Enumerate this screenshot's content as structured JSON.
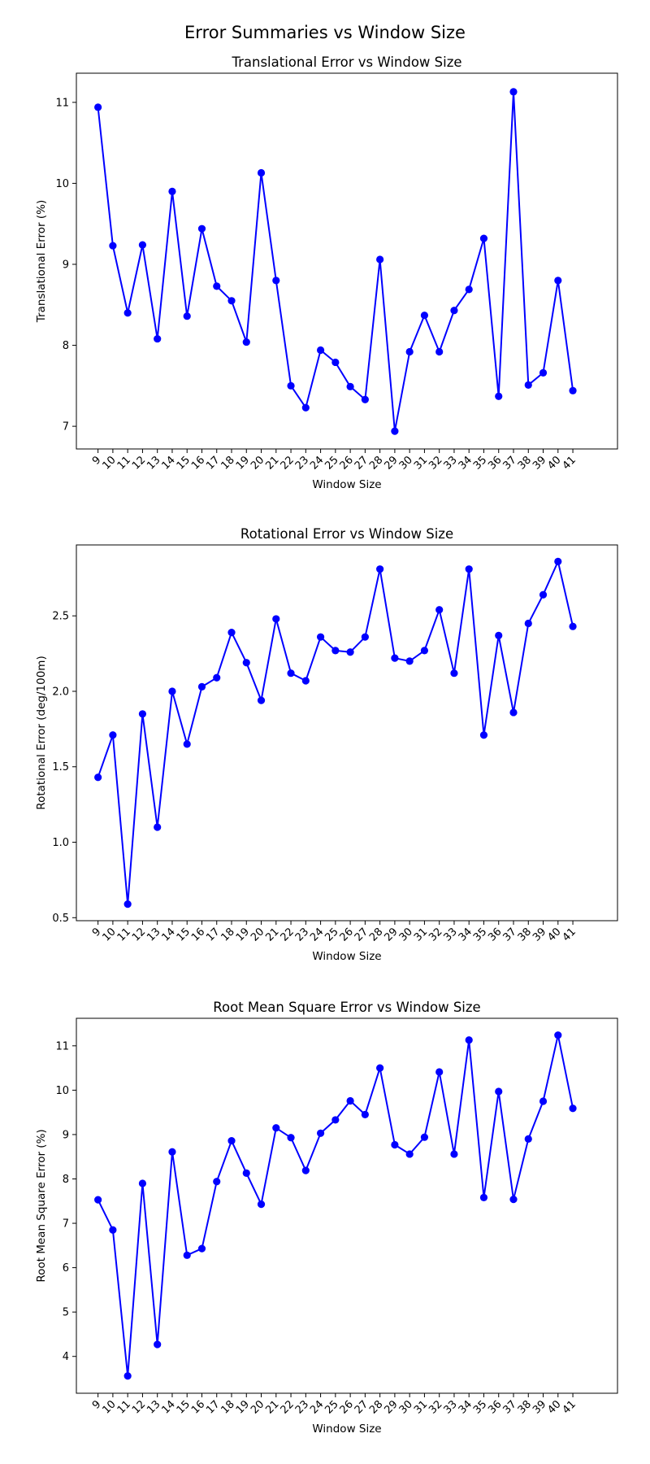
{
  "suptitle": "Error Summaries vs Window Size",
  "chart_data": [
    {
      "type": "line",
      "title": "Translational Error vs Window Size",
      "xlabel": "Window Size",
      "ylabel": "Translational Error (%)",
      "x": [
        9,
        10,
        11,
        12,
        13,
        14,
        15,
        16,
        17,
        18,
        19,
        20,
        21,
        22,
        23,
        24,
        25,
        26,
        27,
        28,
        29,
        30,
        31,
        32,
        33,
        34,
        35,
        36,
        37,
        38,
        39,
        40,
        41
      ],
      "yticks": [
        7,
        8,
        9,
        10,
        11
      ],
      "ylim": [
        6.72,
        11.36
      ],
      "grid": false,
      "series": [
        {
          "values": [
            10.94,
            9.23,
            8.4,
            9.24,
            8.08,
            9.9,
            8.36,
            9.44,
            8.73,
            8.55,
            8.04,
            10.13,
            8.8,
            7.5,
            7.23,
            7.94,
            7.79,
            7.49,
            7.33,
            9.06,
            6.94,
            7.92,
            8.37,
            7.92,
            8.43,
            8.69,
            9.32,
            7.37,
            11.13,
            7.51,
            7.66,
            8.8,
            7.44
          ],
          "color": "#0000ff"
        }
      ]
    },
    {
      "type": "line",
      "title": "Rotational Error vs Window Size",
      "xlabel": "Window Size",
      "ylabel": "Rotational Error (deg/100m)",
      "x": [
        9,
        10,
        11,
        12,
        13,
        14,
        15,
        16,
        17,
        18,
        19,
        20,
        21,
        22,
        23,
        24,
        25,
        26,
        27,
        28,
        29,
        30,
        31,
        32,
        33,
        34,
        35,
        36,
        37,
        38,
        39,
        40,
        41
      ],
      "yticks": [
        0.5,
        1.0,
        1.5,
        2.0,
        2.5
      ],
      "ylim": [
        0.48,
        2.97
      ],
      "grid": false,
      "series": [
        {
          "values": [
            1.43,
            1.71,
            0.59,
            1.85,
            1.1,
            2.0,
            1.65,
            2.03,
            2.09,
            2.39,
            2.19,
            1.94,
            2.48,
            2.12,
            2.07,
            2.36,
            2.27,
            2.26,
            2.36,
            2.81,
            2.22,
            2.2,
            2.27,
            2.54,
            2.12,
            2.81,
            1.71,
            2.37,
            1.86,
            2.45,
            2.64,
            2.86,
            2.43
          ],
          "color": "#0000ff"
        }
      ]
    },
    {
      "type": "line",
      "title": "Root Mean Square Error vs Window Size",
      "xlabel": "Window Size",
      "ylabel": "Root Mean Square Error (%)",
      "x": [
        9,
        10,
        11,
        12,
        13,
        14,
        15,
        16,
        17,
        18,
        19,
        20,
        21,
        22,
        23,
        24,
        25,
        26,
        27,
        28,
        29,
        30,
        31,
        32,
        33,
        34,
        35,
        36,
        37,
        38,
        39,
        40,
        41
      ],
      "yticks": [
        4,
        5,
        6,
        7,
        8,
        9,
        10,
        11
      ],
      "ylim": [
        3.17,
        11.62
      ],
      "grid": false,
      "series": [
        {
          "values": [
            7.53,
            6.85,
            3.56,
            7.9,
            4.27,
            8.61,
            6.28,
            6.43,
            7.94,
            8.86,
            8.13,
            7.43,
            9.15,
            8.93,
            8.19,
            9.03,
            9.33,
            9.76,
            9.45,
            10.5,
            8.77,
            8.56,
            8.94,
            10.41,
            8.56,
            11.13,
            7.58,
            9.97,
            7.54,
            8.9,
            9.75,
            11.24,
            9.59
          ],
          "color": "#0000ff"
        }
      ]
    }
  ]
}
